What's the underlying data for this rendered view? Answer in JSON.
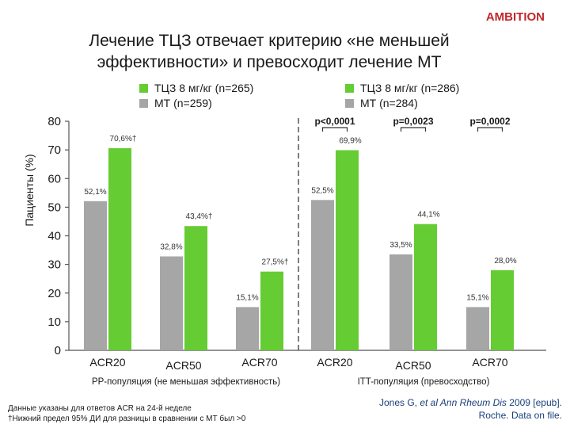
{
  "brand": "AMBITION",
  "title_line1": "Лечение ТЦЗ отвечает критерию «не меньшей",
  "title_line2": "эффективности» и превосходит лечение МТ",
  "colors": {
    "green": "#66cc33",
    "gray": "#a6a6a6",
    "brand_red": "#c0272d",
    "citation_blue": "#1a3f7a"
  },
  "chart_data": {
    "type": "bar",
    "ylabel": "Пациенты (%)",
    "ylim": [
      0,
      80
    ],
    "yticks": [
      0,
      10,
      20,
      30,
      40,
      50,
      60,
      70,
      80
    ],
    "panels": [
      {
        "group_label": "PP-популяция (не меньшая эффективность)",
        "categories": [
          "ACR20",
          "ACR50",
          "ACR70"
        ],
        "series": [
          {
            "name": "МТ (n=259)",
            "color": "#a6a6a6",
            "values": [
              52.1,
              32.8,
              15.1
            ],
            "labels": [
              "52,1%",
              "32,8%",
              "15,1%"
            ]
          },
          {
            "name": "ТЦЗ 8 мг/кг (n=265)",
            "color": "#66cc33",
            "values": [
              70.6,
              43.4,
              27.5
            ],
            "labels": [
              "70,6%†",
              "43,4%†",
              "27,5%†"
            ]
          }
        ],
        "pvalues": []
      },
      {
        "group_label": "ITT-популяция (превосходство)",
        "categories": [
          "ACR20",
          "ACR50",
          "ACR70"
        ],
        "series": [
          {
            "name": "МТ (n=284)",
            "color": "#a6a6a6",
            "values": [
              52.5,
              33.5,
              15.1
            ],
            "labels": [
              "52,5%",
              "33,5%",
              "15,1%"
            ]
          },
          {
            "name": "ТЦЗ 8 мг/кг (n=286)",
            "color": "#66cc33",
            "values": [
              69.9,
              44.1,
              28.0
            ],
            "labels": [
              "69,9%",
              "44,1%",
              "28,0%"
            ]
          }
        ],
        "pvalues": [
          "p<0,0001",
          "p=0,0023",
          "p=0,0002"
        ]
      }
    ]
  },
  "footnote_line1": "Данные указаны для ответов ACR на 24-й неделе",
  "footnote_line2": "†Нижний предел 95% ДИ для разницы в сравнении с МТ был >0",
  "citation_line1_a": "Jones G, ",
  "citation_line1_b": "et al Ann Rheum Dis",
  "citation_line1_c": " 2009 [epub].",
  "citation_line2": "Roche. Data on file."
}
